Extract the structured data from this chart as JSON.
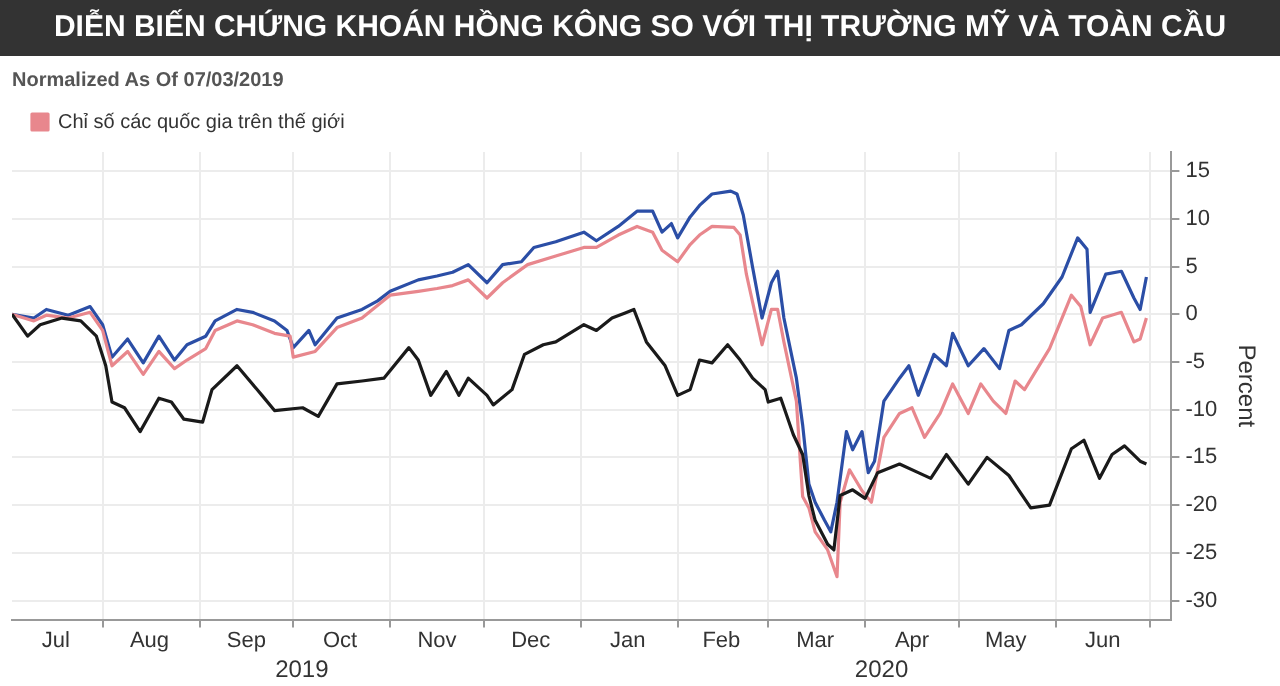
{
  "chart_data": {
    "type": "line",
    "title": "DIỄN BIẾN CHỨNG KHOÁN HỒNG KÔNG SO VỚI THỊ TRƯỜNG MỸ VÀ TOÀN CẦU",
    "subtitle": "Normalized As Of 07/03/2019",
    "ylabel": "Percent",
    "xlim": [
      "2019-07-03",
      "2020-07-08"
    ],
    "ylim": [
      -32,
      17
    ],
    "yticks": [
      15,
      10,
      5,
      0,
      -5,
      -10,
      -15,
      -20,
      -25,
      -30
    ],
    "xticks": [
      {
        "value": "2019-07-17",
        "label": "Jul"
      },
      {
        "value": "2019-08-01",
        "label": null
      },
      {
        "value": "2019-08-16",
        "label": "Aug"
      },
      {
        "value": "2019-09-01",
        "label": null
      },
      {
        "value": "2019-09-16",
        "label": "Sep"
      },
      {
        "value": "2019-10-01",
        "label": null
      },
      {
        "value": "2019-10-16",
        "label": "Oct"
      },
      {
        "value": "2019-11-01",
        "label": null
      },
      {
        "value": "2019-11-16",
        "label": "Nov"
      },
      {
        "value": "2019-12-01",
        "label": null
      },
      {
        "value": "2019-12-16",
        "label": "Dec"
      },
      {
        "value": "2020-01-01",
        "label": null
      },
      {
        "value": "2020-01-16",
        "label": "Jan"
      },
      {
        "value": "2020-02-01",
        "label": null
      },
      {
        "value": "2020-02-15",
        "label": "Feb"
      },
      {
        "value": "2020-03-01",
        "label": null
      },
      {
        "value": "2020-03-16",
        "label": "Mar"
      },
      {
        "value": "2020-04-01",
        "label": null
      },
      {
        "value": "2020-04-16",
        "label": "Apr"
      },
      {
        "value": "2020-05-01",
        "label": null
      },
      {
        "value": "2020-05-16",
        "label": "May"
      },
      {
        "value": "2020-06-01",
        "label": null
      },
      {
        "value": "2020-06-16",
        "label": "Jun"
      },
      {
        "value": "2020-07-01",
        "label": null
      }
    ],
    "grid": true,
    "legend": "top left",
    "marker": "none",
    "line_style": "solid",
    "annotations": [
      "2019",
      "2020"
    ],
    "series": [
      {
        "color": "#1a1a1a",
        "x": [
          "2019-07-03",
          "2019-07-08",
          "2019-07-12",
          "2019-07-19",
          "2019-07-25",
          "2019-07-30",
          "2019-08-02",
          "2019-08-04",
          "2019-08-08",
          "2019-08-13",
          "2019-08-19",
          "2019-08-23",
          "2019-08-27",
          "2019-09-02",
          "2019-09-05",
          "2019-09-13",
          "2019-09-21",
          "2019-09-25",
          "2019-10-04",
          "2019-10-09",
          "2019-10-15",
          "2019-10-23",
          "2019-10-30",
          "2019-11-07",
          "2019-11-10",
          "2019-11-14",
          "2019-11-19",
          "2019-11-23",
          "2019-11-26",
          "2019-12-02",
          "2019-12-04",
          "2019-12-10",
          "2019-12-14",
          "2019-12-20",
          "2019-12-24",
          "2020-01-02",
          "2020-01-06",
          "2020-01-11",
          "2020-01-15",
          "2020-01-18",
          "2020-01-22",
          "2020-01-28",
          "2020-02-01",
          "2020-02-05",
          "2020-02-08",
          "2020-02-12",
          "2020-02-17",
          "2020-02-21",
          "2020-02-25",
          "2020-02-29",
          "2020-03-01",
          "2020-03-05",
          "2020-03-09",
          "2020-03-12",
          "2020-03-14",
          "2020-03-16",
          "2020-03-20",
          "2020-03-22",
          "2020-03-24",
          "2020-03-28",
          "2020-04-01",
          "2020-04-05",
          "2020-04-12",
          "2020-04-18",
          "2020-04-22",
          "2020-04-27",
          "2020-05-04",
          "2020-05-10",
          "2020-05-17",
          "2020-05-24",
          "2020-05-30",
          "2020-06-06",
          "2020-06-10",
          "2020-06-15",
          "2020-06-19",
          "2020-06-23",
          "2020-06-28",
          "2020-06-30"
        ],
        "values": [
          0,
          -2.3,
          -1.1,
          -0.4,
          -0.7,
          -2.3,
          -5.4,
          -9.2,
          -9.8,
          -12.3,
          -8.8,
          -9.2,
          -11.0,
          -11.3,
          -7.9,
          -5.4,
          -8.5,
          -10.1,
          -9.8,
          -10.7,
          -7.3,
          -7.0,
          -6.7,
          -3.5,
          -4.8,
          -8.5,
          -6.0,
          -8.5,
          -6.7,
          -8.5,
          -9.5,
          -7.9,
          -4.2,
          -3.2,
          -2.9,
          -1.1,
          -1.7,
          -0.4,
          0.1,
          0.5,
          -2.9,
          -5.4,
          -8.5,
          -7.9,
          -4.8,
          -5.1,
          -3.2,
          -4.8,
          -6.7,
          -7.9,
          -9.2,
          -8.8,
          -12.6,
          -14.7,
          -19.0,
          -21.6,
          -24.1,
          -24.7,
          -19.0,
          -18.4,
          -19.3,
          -16.6,
          -15.7,
          -16.6,
          -17.2,
          -14.7,
          -17.8,
          -15.0,
          -16.9,
          -20.3,
          -20.0,
          -14.1,
          -13.2,
          -17.2,
          -14.7,
          -13.8,
          -15.4,
          -15.7
        ]
      },
      {
        "name": "Chỉ số các quốc gia trên thế giới",
        "color": "#e8878d",
        "x": [
          "2019-07-03",
          "2019-07-10",
          "2019-07-14",
          "2019-07-21",
          "2019-07-28",
          "2019-08-01",
          "2019-08-04",
          "2019-08-09",
          "2019-08-14",
          "2019-08-19",
          "2019-08-24",
          "2019-08-28",
          "2019-09-03",
          "2019-09-06",
          "2019-09-13",
          "2019-09-18",
          "2019-09-25",
          "2019-09-30",
          "2019-10-01",
          "2019-10-08",
          "2019-10-15",
          "2019-10-23",
          "2019-11-01",
          "2019-11-10",
          "2019-11-16",
          "2019-11-21",
          "2019-11-26",
          "2019-12-02",
          "2019-12-07",
          "2019-12-15",
          "2019-12-24",
          "2020-01-02",
          "2020-01-06",
          "2020-01-13",
          "2020-01-19",
          "2020-01-24",
          "2020-01-27",
          "2020-02-01",
          "2020-02-05",
          "2020-02-08",
          "2020-02-12",
          "2020-02-19",
          "2020-02-21",
          "2020-02-23",
          "2020-02-28",
          "2020-03-02",
          "2020-03-04",
          "2020-03-06",
          "2020-03-10",
          "2020-03-12",
          "2020-03-14",
          "2020-03-16",
          "2020-03-20",
          "2020-03-23",
          "2020-03-24",
          "2020-03-27",
          "2020-03-31",
          "2020-04-03",
          "2020-04-07",
          "2020-04-12",
          "2020-04-16",
          "2020-04-20",
          "2020-04-25",
          "2020-04-29",
          "2020-05-04",
          "2020-05-08",
          "2020-05-12",
          "2020-05-16",
          "2020-05-19",
          "2020-05-22",
          "2020-05-30",
          "2020-06-06",
          "2020-06-09",
          "2020-06-12",
          "2020-06-16",
          "2020-06-22",
          "2020-06-26",
          "2020-06-28",
          "2020-06-30"
        ],
        "values": [
          0,
          -0.7,
          -0.1,
          -0.4,
          0.2,
          -1.7,
          -5.4,
          -3.9,
          -6.3,
          -3.9,
          -5.7,
          -4.8,
          -3.6,
          -1.7,
          -0.7,
          -1.1,
          -2.0,
          -2.3,
          -4.5,
          -3.9,
          -1.4,
          -0.4,
          2.0,
          2.4,
          2.7,
          3.0,
          3.6,
          1.7,
          3.3,
          5.2,
          6.1,
          7.0,
          7.0,
          8.3,
          9.2,
          8.6,
          6.7,
          5.5,
          7.3,
          8.3,
          9.2,
          9.1,
          8.3,
          4.2,
          -3.2,
          0.5,
          0.5,
          -2.9,
          -9.1,
          -19.1,
          -20.3,
          -22.8,
          -24.7,
          -27.5,
          -19.7,
          -16.3,
          -18.5,
          -19.7,
          -12.9,
          -10.4,
          -9.8,
          -12.9,
          -10.4,
          -7.3,
          -10.4,
          -7.3,
          -9.1,
          -10.4,
          -7.0,
          -7.9,
          -3.6,
          2.0,
          0.8,
          -3.2,
          -0.4,
          0.2,
          -2.9,
          -2.6,
          -0.4
        ]
      },
      {
        "color": "#2b4ea6",
        "x": [
          "2019-07-03",
          "2019-07-10",
          "2019-07-14",
          "2019-07-21",
          "2019-07-28",
          "2019-08-01",
          "2019-08-04",
          "2019-08-09",
          "2019-08-14",
          "2019-08-19",
          "2019-08-24",
          "2019-08-28",
          "2019-09-03",
          "2019-09-06",
          "2019-09-13",
          "2019-09-18",
          "2019-09-25",
          "2019-09-29",
          "2019-10-01",
          "2019-10-06",
          "2019-10-08",
          "2019-10-15",
          "2019-10-23",
          "2019-10-28",
          "2019-11-01",
          "2019-11-10",
          "2019-11-16",
          "2019-11-21",
          "2019-11-26",
          "2019-12-02",
          "2019-12-07",
          "2019-12-13",
          "2019-12-17",
          "2019-12-24",
          "2020-01-02",
          "2020-01-06",
          "2020-01-13",
          "2020-01-19",
          "2020-01-24",
          "2020-01-27",
          "2020-01-30",
          "2020-02-01",
          "2020-02-05",
          "2020-02-08",
          "2020-02-12",
          "2020-02-18",
          "2020-02-20",
          "2020-02-22",
          "2020-02-25",
          "2020-02-28",
          "2020-03-02",
          "2020-03-04",
          "2020-03-06",
          "2020-03-10",
          "2020-03-12",
          "2020-03-14",
          "2020-03-16",
          "2020-03-19",
          "2020-03-21",
          "2020-03-23",
          "2020-03-26",
          "2020-03-28",
          "2020-03-31",
          "2020-04-02",
          "2020-04-04",
          "2020-04-07",
          "2020-04-12",
          "2020-04-15",
          "2020-04-18",
          "2020-04-23",
          "2020-04-27",
          "2020-04-29",
          "2020-05-04",
          "2020-05-09",
          "2020-05-14",
          "2020-05-17",
          "2020-05-21",
          "2020-05-28",
          "2020-06-03",
          "2020-06-08",
          "2020-06-11",
          "2020-06-12",
          "2020-06-17",
          "2020-06-22",
          "2020-06-26",
          "2020-06-28",
          "2020-06-30"
        ],
        "values": [
          0,
          -0.4,
          0.5,
          -0.1,
          0.8,
          -1.1,
          -4.5,
          -2.6,
          -5.1,
          -2.3,
          -4.8,
          -3.2,
          -2.3,
          -0.7,
          0.5,
          0.2,
          -0.7,
          -1.7,
          -3.5,
          -1.7,
          -3.2,
          -0.4,
          0.5,
          1.4,
          2.4,
          3.6,
          4.0,
          4.4,
          5.2,
          3.3,
          5.2,
          5.5,
          7.0,
          7.6,
          8.6,
          7.7,
          9.2,
          10.8,
          10.8,
          8.6,
          9.5,
          8.0,
          10.2,
          11.4,
          12.6,
          12.9,
          12.6,
          10.4,
          4.9,
          -0.4,
          3.3,
          4.5,
          -0.4,
          -6.7,
          -11.6,
          -17.8,
          -19.7,
          -21.6,
          -22.8,
          -19.7,
          -12.3,
          -14.2,
          -12.3,
          -16.6,
          -15.4,
          -9.1,
          -6.7,
          -5.4,
          -8.5,
          -4.2,
          -5.4,
          -2.0,
          -5.4,
          -3.6,
          -5.7,
          -1.7,
          -1.1,
          1.1,
          3.9,
          8.0,
          6.8,
          0.2,
          4.2,
          4.5,
          1.7,
          0.5,
          3.9
        ]
      }
    ]
  }
}
